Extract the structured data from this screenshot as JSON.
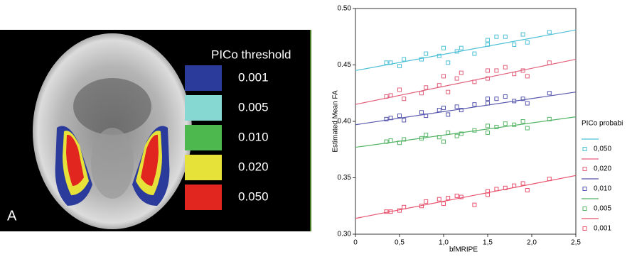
{
  "panel_a": {
    "label": "A",
    "legend_title": "PICo threshold",
    "legend": [
      {
        "label": "0.001",
        "color": "#2b3b9c"
      },
      {
        "label": "0.005",
        "color": "#86d9d2"
      },
      {
        "label": "0.010",
        "color": "#4cb84e"
      },
      {
        "label": "0.020",
        "color": "#e6e23a"
      },
      {
        "label": "0.050",
        "color": "#e0261f"
      }
    ]
  },
  "chart_data": {
    "type": "scatter",
    "x_label": "bfMRIPE",
    "y_label": "Estimated Mean FA",
    "legend_title": "PICo probabi",
    "xlim": [
      0,
      2.5
    ],
    "xticks": [
      0,
      {
        "value": 0.5,
        "label": "0,5"
      },
      {
        "value": 1,
        "label": "1,0"
      },
      {
        "value": 1.5,
        "label": "1,5"
      },
      {
        "value": 2,
        "label": "2,0"
      },
      {
        "value": 2.5,
        "label": "2,5"
      }
    ],
    "ylim": [
      0.3,
      0.5
    ],
    "yticks": [
      {
        "value": 0.3,
        "label": "0.30"
      },
      0.35,
      {
        "value": 0.4,
        "label": "0.40"
      },
      0.45,
      {
        "value": 0.5,
        "label": "0.50"
      }
    ],
    "series": [
      {
        "name": "0,050",
        "color": "#4cc0d6",
        "x": [
          0.35,
          0.4,
          0.5,
          0.55,
          0.75,
          0.8,
          0.95,
          1.0,
          1.05,
          1.15,
          1.2,
          1.35,
          1.5,
          1.5,
          1.6,
          1.7,
          1.8,
          1.9,
          1.95,
          2.2
        ],
        "values": [
          0.452,
          0.452,
          0.449,
          0.455,
          0.455,
          0.46,
          0.458,
          0.465,
          0.452,
          0.462,
          0.465,
          0.46,
          0.472,
          0.468,
          0.475,
          0.475,
          0.468,
          0.477,
          0.47,
          0.479
        ],
        "fit_x": [
          0,
          2.5
        ],
        "fit_y": [
          0.445,
          0.481
        ]
      },
      {
        "name": "0,020",
        "color": "#e2607c",
        "x": [
          0.35,
          0.4,
          0.5,
          0.55,
          0.75,
          0.8,
          0.95,
          1.0,
          1.05,
          1.15,
          1.2,
          1.35,
          1.5,
          1.5,
          1.6,
          1.7,
          1.8,
          1.9,
          1.95,
          2.2
        ],
        "values": [
          0.422,
          0.423,
          0.428,
          0.42,
          0.425,
          0.43,
          0.432,
          0.44,
          0.426,
          0.438,
          0.443,
          0.435,
          0.445,
          0.438,
          0.445,
          0.448,
          0.442,
          0.445,
          0.44,
          0.452
        ],
        "fit_x": [
          0,
          2.5
        ],
        "fit_y": [
          0.415,
          0.455
        ]
      },
      {
        "name": "0,010",
        "color": "#5656ae",
        "x": [
          0.35,
          0.4,
          0.5,
          0.55,
          0.75,
          0.8,
          0.95,
          1.0,
          1.05,
          1.15,
          1.2,
          1.35,
          1.5,
          1.5,
          1.6,
          1.7,
          1.8,
          1.9,
          1.95,
          2.2
        ],
        "values": [
          0.402,
          0.403,
          0.405,
          0.401,
          0.408,
          0.405,
          0.41,
          0.412,
          0.406,
          0.413,
          0.41,
          0.415,
          0.42,
          0.416,
          0.42,
          0.422,
          0.418,
          0.42,
          0.416,
          0.425
        ],
        "fit_x": [
          0,
          2.5
        ],
        "fit_y": [
          0.397,
          0.426
        ]
      },
      {
        "name": "0,005",
        "color": "#55b466",
        "x": [
          0.35,
          0.4,
          0.5,
          0.55,
          0.75,
          0.8,
          0.95,
          1.0,
          1.05,
          1.15,
          1.2,
          1.35,
          1.5,
          1.5,
          1.6,
          1.7,
          1.8,
          1.9,
          1.95,
          2.2
        ],
        "values": [
          0.382,
          0.383,
          0.381,
          0.384,
          0.385,
          0.388,
          0.386,
          0.382,
          0.39,
          0.387,
          0.389,
          0.392,
          0.396,
          0.39,
          0.395,
          0.398,
          0.397,
          0.4,
          0.394,
          0.402
        ],
        "fit_x": [
          0,
          2.5
        ],
        "fit_y": [
          0.377,
          0.404
        ]
      },
      {
        "name": "0,001",
        "color": "#e8506c",
        "x": [
          0.35,
          0.4,
          0.5,
          0.55,
          0.75,
          0.8,
          0.95,
          1.0,
          1.05,
          1.15,
          1.2,
          1.35,
          1.5,
          1.5,
          1.6,
          1.7,
          1.8,
          1.9,
          1.95,
          2.2
        ],
        "values": [
          0.32,
          0.32,
          0.321,
          0.324,
          0.325,
          0.329,
          0.331,
          0.327,
          0.332,
          0.334,
          0.333,
          0.326,
          0.338,
          0.335,
          0.34,
          0.341,
          0.343,
          0.345,
          0.339,
          0.349
        ],
        "fit_x": [
          0,
          2.5
        ],
        "fit_y": [
          0.314,
          0.352
        ]
      }
    ]
  }
}
